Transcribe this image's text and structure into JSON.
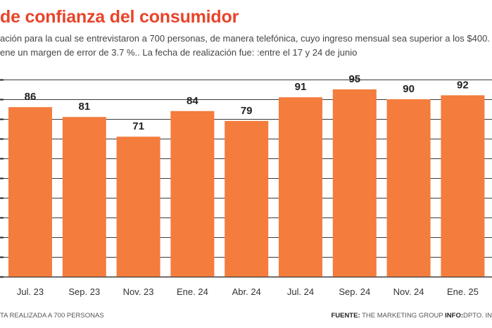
{
  "header": {
    "title": "de confianza del consumidor",
    "subtitle_line1": "ación para la cual se entrevistaron a 700 personas, de manera telefónica, cuyo ingreso mensual sea superior a los $400.",
    "subtitle_line2": "ene un margen de error de 3.7 %.. La fecha de realización fue: :entre el 17 y 24 de junio"
  },
  "footer": {
    "left": "TA REALIZADA A 700 PERSONAS",
    "source_label": "FUENTE:",
    "source_value": "THE MARKETING GROUP",
    "info_label": "INFO:",
    "info_value": "DPTO. IN"
  },
  "colors": {
    "bar": "#f47c3c",
    "title": "#e8442a",
    "grid": "#3a3a3a"
  },
  "chart_data": {
    "type": "bar",
    "title": "de confianza del consumidor",
    "categories": [
      "Jul. 23",
      "Sep. 23",
      "Nov. 23",
      "Ene. 24",
      "Abr. 24",
      "Jul. 24",
      "Sep. 24",
      "Nov. 24",
      "Ene. 25"
    ],
    "values": [
      86,
      81,
      71,
      84,
      79,
      91,
      95,
      90,
      92
    ],
    "ylim": [
      0,
      100
    ],
    "grid": true,
    "xlabel": "",
    "ylabel": ""
  }
}
